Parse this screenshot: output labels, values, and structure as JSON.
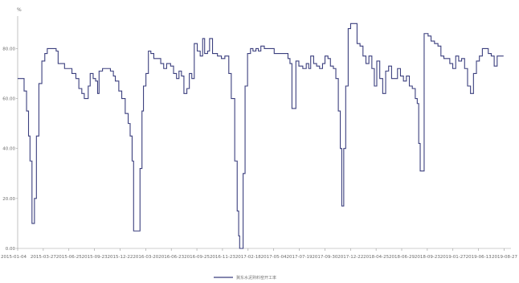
{
  "chart_data": {
    "type": "line",
    "y_unit": "%",
    "ylim": [
      0,
      93
    ],
    "yticks": [
      {
        "value": 0,
        "label": "0.00"
      },
      {
        "value": 20,
        "label": "20.00"
      },
      {
        "value": 40,
        "label": "40.00"
      },
      {
        "value": 60,
        "label": "60.00"
      },
      {
        "value": 80,
        "label": "80.00"
      }
    ],
    "xticks": [
      {
        "label": "2015-01-04",
        "pos": 0.0
      },
      {
        "label": "2015-03-27",
        "pos": 0.0519
      },
      {
        "label": "2015-06-25",
        "pos": 0.1038
      },
      {
        "label": "2015-09-23",
        "pos": 0.1557
      },
      {
        "label": "2015-12-22",
        "pos": 0.2076
      },
      {
        "label": "2016-03-20",
        "pos": 0.2595
      },
      {
        "label": "2016-06-23",
        "pos": 0.3114
      },
      {
        "label": "2016-09-25",
        "pos": 0.3633
      },
      {
        "label": "2016-11-23",
        "pos": 0.4152
      },
      {
        "label": "2017-02-18",
        "pos": 0.4671
      },
      {
        "label": "2017-05-04",
        "pos": 0.519
      },
      {
        "label": "2017-07-19",
        "pos": 0.5709
      },
      {
        "label": "2017-09-30",
        "pos": 0.6228
      },
      {
        "label": "2017-12-22",
        "pos": 0.6747
      },
      {
        "label": "2018-04-25",
        "pos": 0.7266
      },
      {
        "label": "2018-06-29",
        "pos": 0.7785
      },
      {
        "label": "2018-09-23",
        "pos": 0.8304
      },
      {
        "label": "2019-01-27",
        "pos": 0.8823
      },
      {
        "label": "2019-06-13",
        "pos": 0.9342
      },
      {
        "label": "2019-08-27",
        "pos": 0.9861
      }
    ],
    "grid": false,
    "legend_position": "bottom-center",
    "series": [
      {
        "name": "冀东水泥熟料窑开工率",
        "color": "#3b3f7e",
        "points": [
          [
            0.0,
            68
          ],
          [
            0.008,
            68
          ],
          [
            0.013,
            63
          ],
          [
            0.018,
            55
          ],
          [
            0.022,
            45
          ],
          [
            0.025,
            35
          ],
          [
            0.029,
            10
          ],
          [
            0.034,
            20
          ],
          [
            0.038,
            45
          ],
          [
            0.043,
            66
          ],
          [
            0.049,
            75
          ],
          [
            0.055,
            78
          ],
          [
            0.06,
            80
          ],
          [
            0.07,
            80
          ],
          [
            0.078,
            79
          ],
          [
            0.082,
            74
          ],
          [
            0.095,
            72
          ],
          [
            0.11,
            70
          ],
          [
            0.118,
            68
          ],
          [
            0.124,
            64
          ],
          [
            0.13,
            62
          ],
          [
            0.135,
            60
          ],
          [
            0.14,
            60
          ],
          [
            0.143,
            65
          ],
          [
            0.147,
            70
          ],
          [
            0.153,
            68
          ],
          [
            0.158,
            67
          ],
          [
            0.162,
            62
          ],
          [
            0.165,
            71
          ],
          [
            0.172,
            72
          ],
          [
            0.18,
            72
          ],
          [
            0.188,
            71
          ],
          [
            0.194,
            69
          ],
          [
            0.198,
            67
          ],
          [
            0.205,
            63
          ],
          [
            0.211,
            60
          ],
          [
            0.218,
            54
          ],
          [
            0.224,
            50
          ],
          [
            0.228,
            45
          ],
          [
            0.232,
            35
          ],
          [
            0.235,
            7
          ],
          [
            0.244,
            7
          ],
          [
            0.248,
            32
          ],
          [
            0.252,
            55
          ],
          [
            0.255,
            65
          ],
          [
            0.26,
            70
          ],
          [
            0.265,
            79
          ],
          [
            0.27,
            78
          ],
          [
            0.276,
            76
          ],
          [
            0.282,
            76
          ],
          [
            0.29,
            74
          ],
          [
            0.296,
            72
          ],
          [
            0.302,
            74
          ],
          [
            0.31,
            73
          ],
          [
            0.316,
            70
          ],
          [
            0.322,
            68
          ],
          [
            0.327,
            71
          ],
          [
            0.332,
            69
          ],
          [
            0.337,
            62
          ],
          [
            0.343,
            64
          ],
          [
            0.348,
            70
          ],
          [
            0.353,
            68
          ],
          [
            0.358,
            82
          ],
          [
            0.364,
            79
          ],
          [
            0.37,
            77
          ],
          [
            0.375,
            84
          ],
          [
            0.379,
            78
          ],
          [
            0.385,
            79
          ],
          [
            0.389,
            84
          ],
          [
            0.395,
            78
          ],
          [
            0.405,
            77
          ],
          [
            0.413,
            76
          ],
          [
            0.42,
            77
          ],
          [
            0.428,
            70
          ],
          [
            0.433,
            60
          ],
          [
            0.44,
            35
          ],
          [
            0.445,
            15
          ],
          [
            0.448,
            5
          ],
          [
            0.45,
            0
          ],
          [
            0.452,
            0
          ],
          [
            0.457,
            30
          ],
          [
            0.461,
            65
          ],
          [
            0.466,
            78
          ],
          [
            0.472,
            80
          ],
          [
            0.477,
            79
          ],
          [
            0.483,
            80
          ],
          [
            0.488,
            79
          ],
          [
            0.493,
            81
          ],
          [
            0.5,
            80
          ],
          [
            0.51,
            80
          ],
          [
            0.52,
            78
          ],
          [
            0.53,
            78
          ],
          [
            0.54,
            78
          ],
          [
            0.548,
            76
          ],
          [
            0.552,
            74
          ],
          [
            0.556,
            56
          ],
          [
            0.56,
            56
          ],
          [
            0.564,
            75
          ],
          [
            0.57,
            73
          ],
          [
            0.578,
            72
          ],
          [
            0.585,
            74
          ],
          [
            0.59,
            72
          ],
          [
            0.594,
            77
          ],
          [
            0.6,
            74
          ],
          [
            0.606,
            73
          ],
          [
            0.612,
            72
          ],
          [
            0.618,
            74
          ],
          [
            0.623,
            77
          ],
          [
            0.629,
            76
          ],
          [
            0.634,
            73
          ],
          [
            0.64,
            72
          ],
          [
            0.645,
            68
          ],
          [
            0.65,
            55
          ],
          [
            0.654,
            40
          ],
          [
            0.657,
            17
          ],
          [
            0.661,
            40
          ],
          [
            0.665,
            65
          ],
          [
            0.67,
            88
          ],
          [
            0.675,
            90
          ],
          [
            0.682,
            90
          ],
          [
            0.688,
            82
          ],
          [
            0.694,
            81
          ],
          [
            0.7,
            77
          ],
          [
            0.706,
            74
          ],
          [
            0.712,
            77
          ],
          [
            0.718,
            72
          ],
          [
            0.723,
            65
          ],
          [
            0.728,
            75
          ],
          [
            0.734,
            68
          ],
          [
            0.74,
            62
          ],
          [
            0.746,
            71
          ],
          [
            0.752,
            73
          ],
          [
            0.758,
            68
          ],
          [
            0.764,
            68
          ],
          [
            0.77,
            72
          ],
          [
            0.776,
            69
          ],
          [
            0.782,
            67
          ],
          [
            0.788,
            69
          ],
          [
            0.794,
            65
          ],
          [
            0.8,
            64
          ],
          [
            0.806,
            60
          ],
          [
            0.81,
            58
          ],
          [
            0.813,
            42
          ],
          [
            0.816,
            31
          ],
          [
            0.82,
            31
          ],
          [
            0.824,
            86
          ],
          [
            0.832,
            85
          ],
          [
            0.838,
            83
          ],
          [
            0.845,
            82
          ],
          [
            0.852,
            81
          ],
          [
            0.858,
            77
          ],
          [
            0.864,
            76
          ],
          [
            0.87,
            76
          ],
          [
            0.876,
            74
          ],
          [
            0.882,
            72
          ],
          [
            0.888,
            77
          ],
          [
            0.894,
            75
          ],
          [
            0.9,
            76
          ],
          [
            0.906,
            72
          ],
          [
            0.912,
            65
          ],
          [
            0.918,
            62
          ],
          [
            0.924,
            70
          ],
          [
            0.93,
            75
          ],
          [
            0.936,
            77
          ],
          [
            0.942,
            80
          ],
          [
            0.948,
            80
          ],
          [
            0.954,
            78
          ],
          [
            0.96,
            77
          ],
          [
            0.966,
            73
          ],
          [
            0.972,
            77
          ],
          [
            0.978,
            77
          ],
          [
            0.985,
            77
          ]
        ]
      }
    ]
  }
}
